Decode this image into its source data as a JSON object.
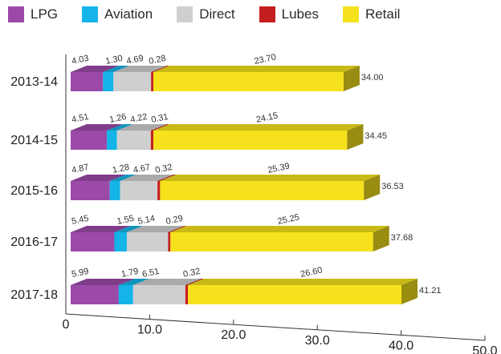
{
  "chart_data": {
    "type": "bar",
    "orientation": "horizontal",
    "stacked": true,
    "style": "3d",
    "categories": [
      "2013-14",
      "2014-15",
      "2015-16",
      "2016-17",
      "2017-18"
    ],
    "series": [
      {
        "name": "LPG",
        "color": "#9b4aa8",
        "values": [
          4.03,
          4.51,
          4.87,
          5.45,
          5.99
        ]
      },
      {
        "name": "Aviation",
        "color": "#14b4e8",
        "values": [
          1.3,
          1.26,
          1.28,
          1.55,
          1.79
        ]
      },
      {
        "name": "Direct",
        "color": "#cfcfcf",
        "values": [
          4.69,
          4.22,
          4.67,
          5.14,
          6.51
        ]
      },
      {
        "name": "Lubes",
        "color": "#c41e1e",
        "values": [
          0.28,
          0.31,
          0.32,
          0.29,
          0.32
        ]
      },
      {
        "name": "Retail",
        "color": "#f5e21c",
        "values": [
          23.7,
          24.15,
          25.39,
          25.25,
          26.6
        ]
      }
    ],
    "series_labels": [
      [
        "4.03",
        "1.30",
        "4.69",
        "0.28",
        "23.70"
      ],
      [
        "4.51",
        "1.26",
        "4.22",
        "0.31",
        "24.15"
      ],
      [
        "4.87",
        "1.28",
        "4.67",
        "0.32",
        "25.39"
      ],
      [
        "5.45",
        "1.55",
        "5.14",
        "0.29",
        "25.25"
      ],
      [
        "5.99",
        "1.79",
        "6.51",
        "0.32",
        "26.60"
      ]
    ],
    "totals": [
      "34.00",
      "34.45",
      "36.53",
      "37.68",
      "41.21"
    ],
    "total_values": [
      34.0,
      34.45,
      36.53,
      37.68,
      41.21
    ],
    "x_ticks": [
      "0",
      "10.0",
      "20.0",
      "30.0",
      "40.0",
      "50.0"
    ],
    "xlim": [
      0,
      50
    ],
    "legend_position": "top",
    "grid": false
  }
}
